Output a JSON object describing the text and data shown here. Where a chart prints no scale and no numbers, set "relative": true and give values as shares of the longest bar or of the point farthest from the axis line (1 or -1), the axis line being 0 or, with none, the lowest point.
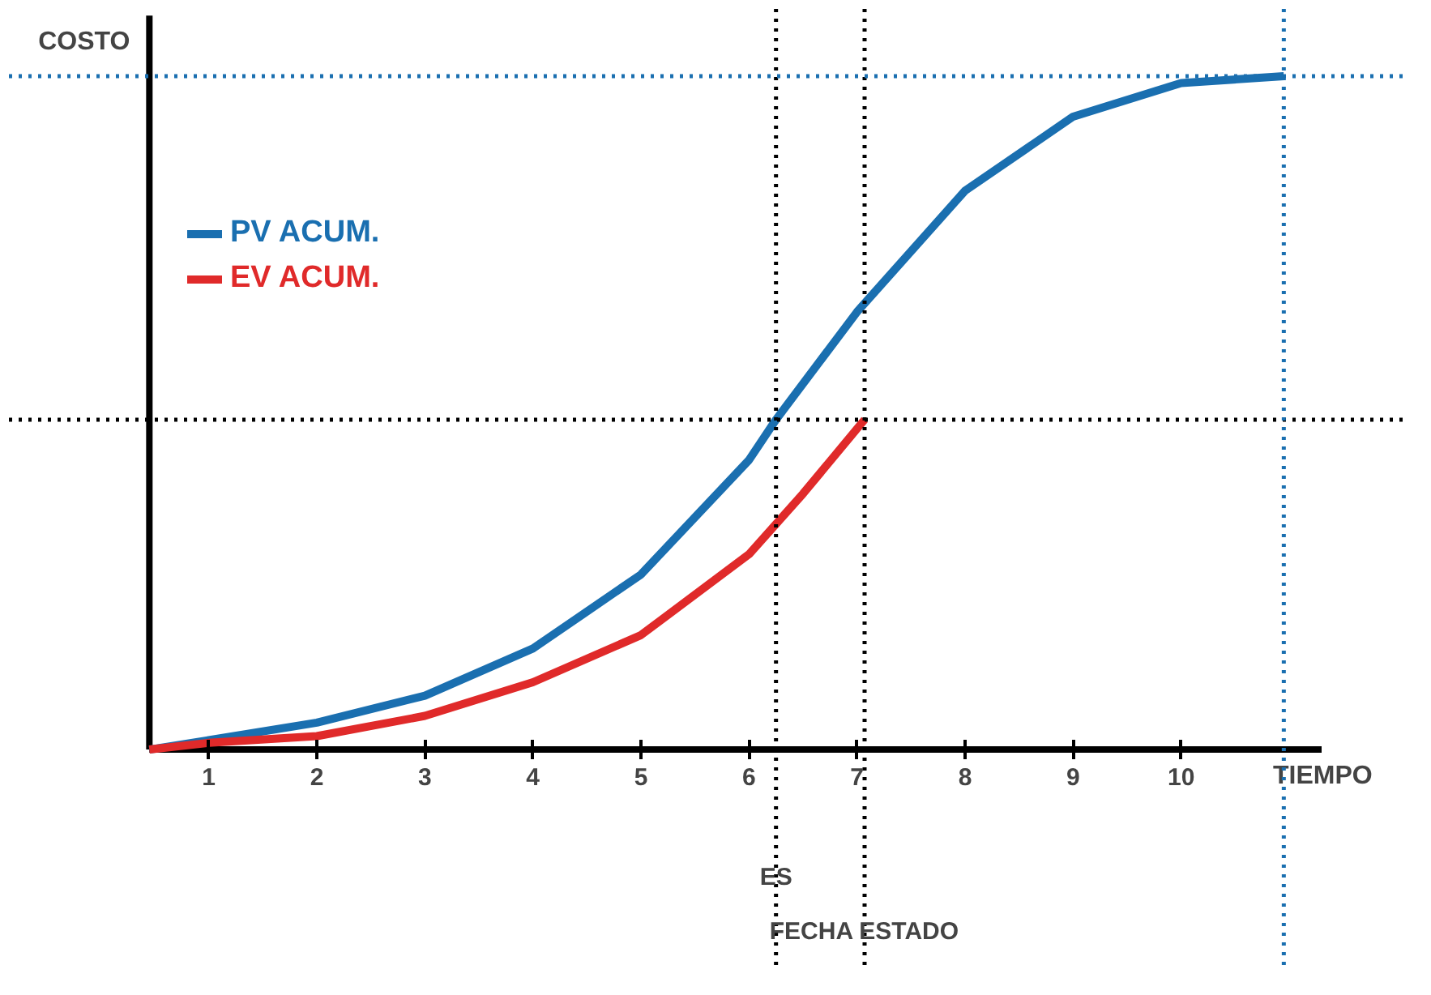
{
  "chart_data": {
    "type": "line",
    "relative": true,
    "xlabel": "TIEMPO",
    "ylabel": "COSTO",
    "xlim": [
      0.45,
      11.3
    ],
    "xticks": [
      1,
      2,
      3,
      4,
      5,
      6,
      7,
      8,
      9,
      10
    ],
    "legend": "top left",
    "grid": false,
    "series": [
      {
        "name": "PV ACUM.",
        "color": "#1a6fb0",
        "x": [
          0.45,
          1,
          2,
          3,
          4,
          5,
          6,
          6.25,
          7,
          8,
          9,
          10,
          10.95
        ],
        "values": [
          0,
          0.014,
          0.04,
          0.08,
          0.15,
          0.26,
          0.43,
          0.49,
          0.65,
          0.83,
          0.94,
          0.99,
          1
        ]
      },
      {
        "name": "EV ACUM.",
        "color": "#e02a2a",
        "x": [
          0.45,
          1,
          2,
          3,
          4,
          5,
          6,
          6.5,
          7.07
        ],
        "values": [
          0,
          0.01,
          0.02,
          0.05,
          0.1,
          0.17,
          0.29,
          0.38,
          0.49
        ]
      }
    ],
    "ref_lines": [
      {
        "axis": "x",
        "value": 6.25,
        "label": "ES",
        "color": "#000000",
        "line_style": "dotted"
      },
      {
        "axis": "x",
        "value": 7.07,
        "label": "FECHA ESTADO",
        "color": "#000000",
        "line_style": "dotted"
      },
      {
        "axis": "y",
        "value": 0.49,
        "color": "#000000",
        "line_style": "dotted"
      },
      {
        "axis": "y",
        "value": 1,
        "color": "#1a6fb0",
        "line_style": "dotted"
      },
      {
        "axis": "x",
        "value": 10.95,
        "color": "#1a6fb0",
        "line_style": "dotted"
      }
    ]
  }
}
